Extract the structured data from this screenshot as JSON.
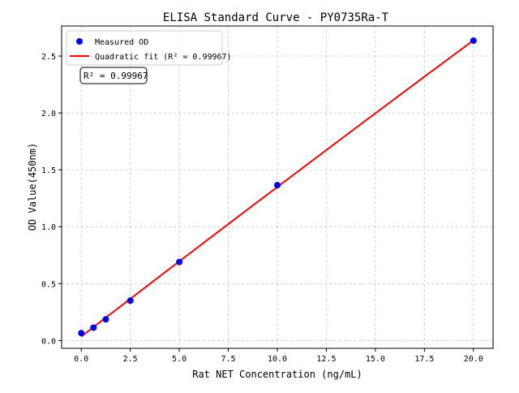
{
  "chart_data": {
    "type": "scatter",
    "title": "ELISA Standard Curve - PY0735Ra-T",
    "xlabel": "Rat NET Concentration (ng/mL)",
    "ylabel": "OD Value(450nm)",
    "xlim": [
      -1.0,
      21.0
    ],
    "ylim": [
      -0.069,
      2.764
    ],
    "xticks": [
      "0.0",
      "2.5",
      "5.0",
      "7.5",
      "10.0",
      "12.5",
      "15.0",
      "17.5",
      "20.0"
    ],
    "yticks": [
      "0.0",
      "0.5",
      "1.0",
      "1.5",
      "2.0",
      "2.5"
    ],
    "grid": true,
    "legend_position": "top-left",
    "series": [
      {
        "name": "Measured OD",
        "kind": "scatter",
        "color": "#0000ff",
        "x": [
          0,
          0.625,
          1.25,
          2.5,
          5,
          10,
          20
        ],
        "y": [
          0.065,
          0.113,
          0.186,
          0.35,
          0.69,
          1.365,
          2.635
        ]
      },
      {
        "name": "Quadratic fit (R² = 0.99967)",
        "kind": "line",
        "color": "#ff0000"
      }
    ],
    "annotation": "R² = 0.99967"
  }
}
